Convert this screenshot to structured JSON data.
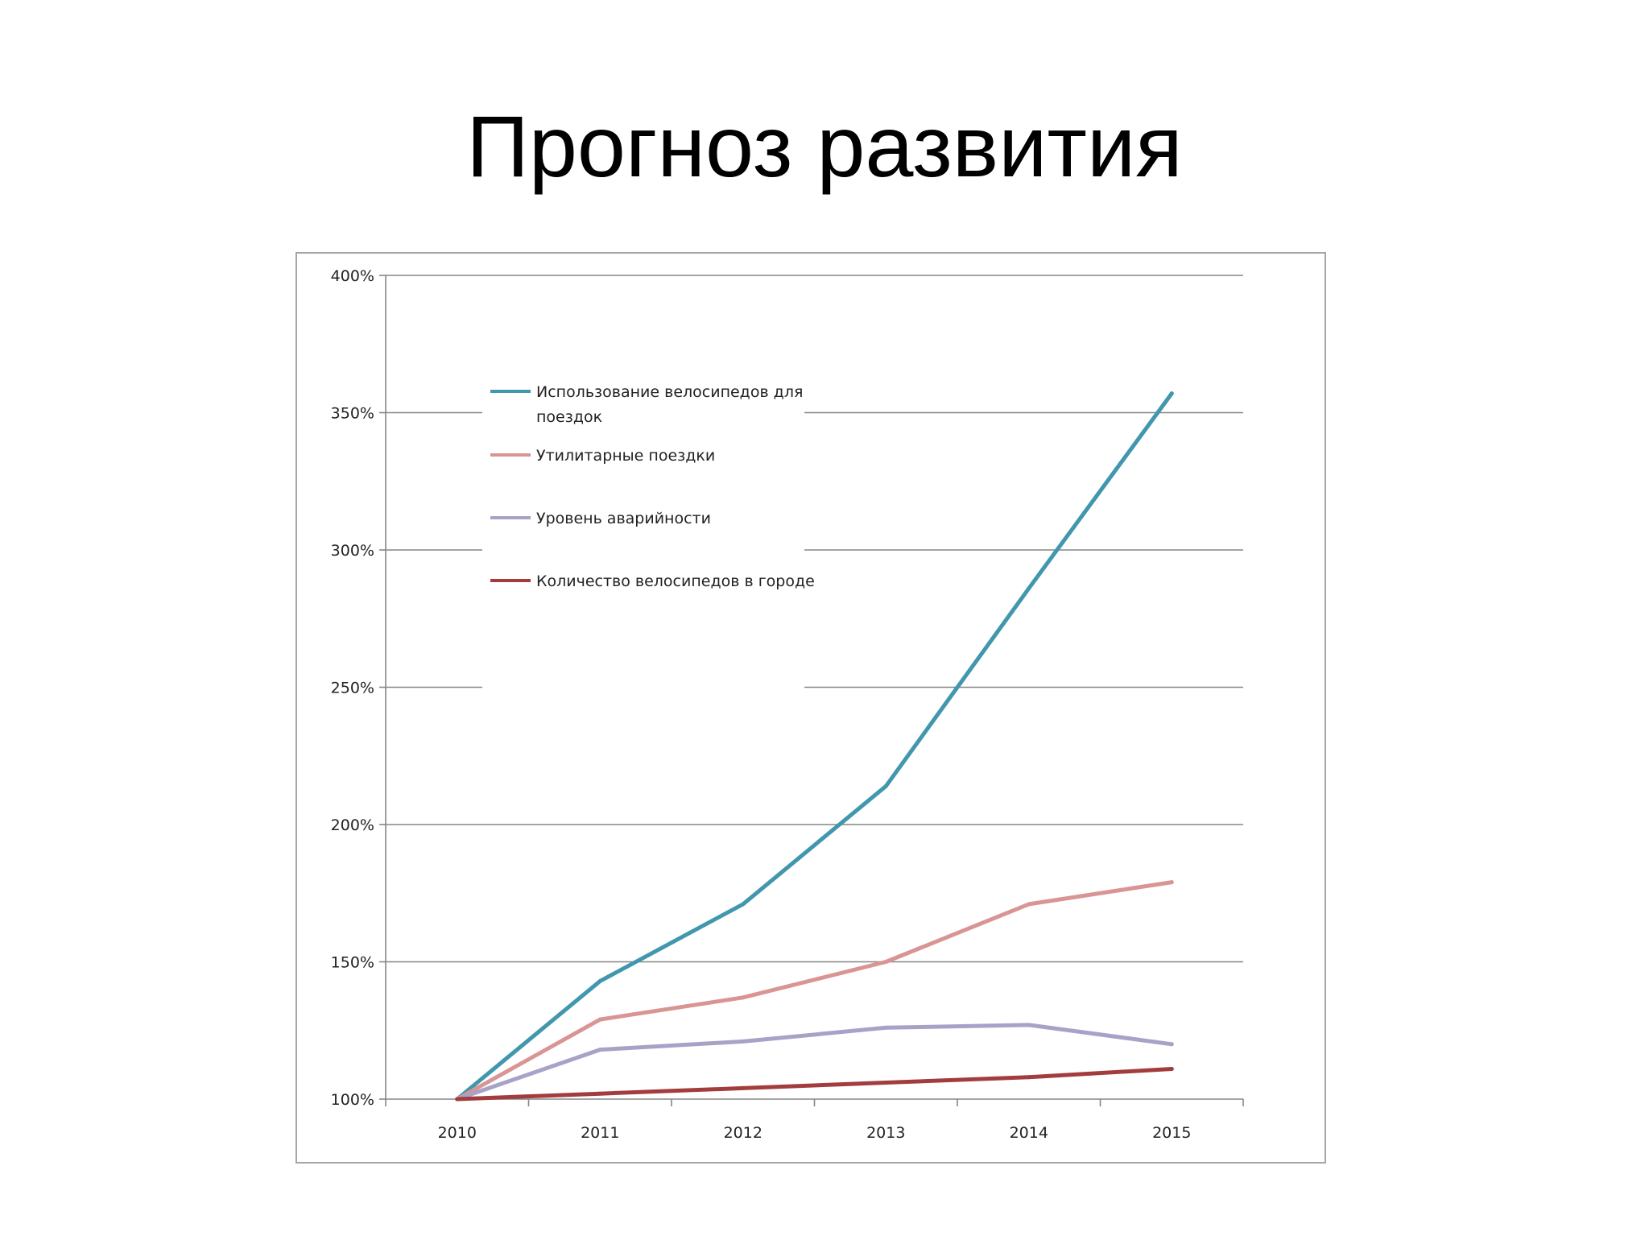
{
  "slide": {
    "title": "Прогноз развития"
  },
  "chart_data": {
    "type": "line",
    "categories": [
      "2010",
      "2011",
      "2012",
      "2013",
      "2014",
      "2015"
    ],
    "y_ticks": [
      "100%",
      "150%",
      "200%",
      "250%",
      "300%",
      "350%",
      "400%"
    ],
    "ylim": [
      100,
      400
    ],
    "y_unit": "%",
    "grid": true,
    "legend_placement": "top-left inside plot",
    "series": [
      {
        "name": "Использование велосипедов для поездок",
        "color": "#4197ad",
        "values": [
          100,
          143,
          171,
          214,
          286,
          357
        ]
      },
      {
        "name": "Утилитарные поездки",
        "color": "#d99594",
        "values": [
          100,
          129,
          137,
          150,
          171,
          179
        ]
      },
      {
        "name": "Уровень аварийности",
        "color": "#a7a2c7",
        "values": [
          100,
          118,
          121,
          126,
          127,
          120
        ]
      },
      {
        "name": "Количество велосипедов в городе",
        "color": "#a33d3d",
        "values": [
          100,
          102,
          104,
          106,
          108,
          111
        ]
      }
    ]
  }
}
